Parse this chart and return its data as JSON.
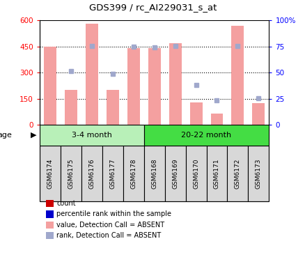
{
  "title": "GDS399 / rc_AI229031_s_at",
  "samples": [
    "GSM6174",
    "GSM6175",
    "GSM6176",
    "GSM6177",
    "GSM6178",
    "GSM6168",
    "GSM6169",
    "GSM6170",
    "GSM6171",
    "GSM6172",
    "GSM6173"
  ],
  "bar_values": [
    450,
    200,
    580,
    200,
    440,
    440,
    470,
    130,
    65,
    570,
    125
  ],
  "rank_values": [
    null,
    310,
    455,
    295,
    448,
    445,
    453,
    230,
    143,
    453,
    153
  ],
  "group1_label": "3-4 month",
  "group2_label": "20-22 month",
  "group1_count": 5,
  "group2_count": 6,
  "ylim_left": [
    0,
    600
  ],
  "ylim_right": [
    0,
    100
  ],
  "yticks_left": [
    0,
    150,
    300,
    450,
    600
  ],
  "yticks_right": [
    0,
    25,
    50,
    75,
    100
  ],
  "ytick_right_labels": [
    "0",
    "25",
    "50",
    "75",
    "100%"
  ],
  "bar_color_absent": "#f4a0a0",
  "rank_color_absent": "#a0a8cc",
  "group1_bg": "#b8f0b8",
  "group2_bg": "#44dd44",
  "sample_box_bg": "#d8d8d8",
  "legend_items": [
    {
      "color": "#cc0000",
      "label": "count"
    },
    {
      "color": "#0000cc",
      "label": "percentile rank within the sample"
    },
    {
      "color": "#f4a0a0",
      "label": "value, Detection Call = ABSENT"
    },
    {
      "color": "#a0a8cc",
      "label": "rank, Detection Call = ABSENT"
    }
  ],
  "dotted_lines": [
    150,
    300,
    450
  ],
  "hline_color": "black",
  "border_color": "black"
}
